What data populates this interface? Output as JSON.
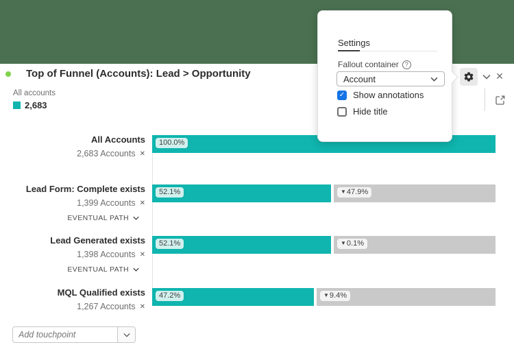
{
  "colors": {
    "backdrop": "#4a7051",
    "bar": "#0fb5ae",
    "fallout": "#c9c9c9",
    "status_dot": "#7fd24b",
    "checkbox_checked": "#1473e6"
  },
  "header": {
    "title": "Top of Funnel (Accounts): Lead > Opportunity",
    "legend_label": "All accounts",
    "legend_value": "2,683"
  },
  "toolbar": {
    "close_glyph": "✕"
  },
  "settings_popup": {
    "tab": "Settings",
    "field_label": "Fallout container",
    "help_glyph": "?",
    "dropdown_value": "Account",
    "options": [
      {
        "label": "Show annotations",
        "checked": true,
        "check_glyph": "✓"
      },
      {
        "label": "Hide title",
        "checked": false,
        "check_glyph": ""
      }
    ]
  },
  "chart_data": {
    "type": "funnel",
    "title": "Top of Funnel (Accounts): Lead > Opportunity",
    "total_label": "2,683",
    "fallout_arrow": "▼",
    "remove_glyph": "✕",
    "path_chevron": "v",
    "steps": [
      {
        "name": "All Accounts",
        "accounts_label": "2,683 Accounts",
        "count": 2683,
        "pct": 100.0,
        "pct_label": "100.0%"
      },
      {
        "name": "Lead Form: Complete exists",
        "accounts_label": "1,399 Accounts",
        "count": 1399,
        "pct": 52.1,
        "pct_label": "52.1%",
        "fallout_pct": 47.9,
        "fallout_label": "47.9%",
        "path_label": "EVENTUAL PATH"
      },
      {
        "name": "Lead Generated exists",
        "accounts_label": "1,398 Accounts",
        "count": 1398,
        "pct": 52.1,
        "pct_label": "52.1%",
        "fallout_pct": 0.1,
        "fallout_label": "0.1%",
        "path_label": "EVENTUAL PATH"
      },
      {
        "name": "MQL Qualified exists",
        "accounts_label": "1,267 Accounts",
        "count": 1267,
        "pct": 47.2,
        "pct_label": "47.2%",
        "fallout_pct": 9.4,
        "fallout_label": "9.4%"
      }
    ]
  },
  "add_touchpoint": {
    "placeholder": "Add touchpoint"
  }
}
